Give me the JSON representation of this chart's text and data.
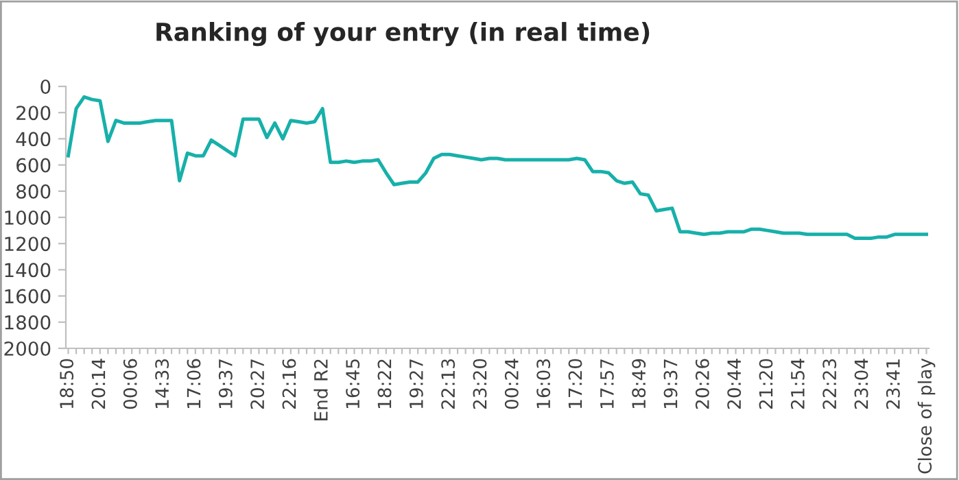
{
  "chart_data": {
    "type": "line",
    "title": "Ranking of your entry (in real time)",
    "categories": [
      "18:50",
      null,
      null,
      null,
      "20:14",
      null,
      null,
      null,
      "00:06",
      null,
      null,
      null,
      "14:33",
      null,
      null,
      null,
      "17:06",
      null,
      null,
      null,
      "19:37",
      null,
      null,
      null,
      "20:27",
      null,
      null,
      null,
      "22:16",
      null,
      null,
      null,
      "End R2",
      null,
      null,
      null,
      "16:45",
      null,
      null,
      null,
      "18:22",
      null,
      null,
      null,
      "19:27",
      null,
      null,
      null,
      "22:13",
      null,
      null,
      null,
      "23:20",
      null,
      null,
      null,
      "00:24",
      null,
      null,
      null,
      "16:03",
      null,
      null,
      null,
      "17:20",
      null,
      null,
      null,
      "17:57",
      null,
      null,
      null,
      "18:49",
      null,
      null,
      null,
      "19:37",
      null,
      null,
      null,
      "20:26",
      null,
      null,
      null,
      "20:44",
      null,
      null,
      null,
      "21:20",
      null,
      null,
      null,
      "21:54",
      null,
      null,
      null,
      "22:23",
      null,
      null,
      null,
      "23:04",
      null,
      null,
      null,
      "23:41",
      null,
      null,
      null,
      "Close of play"
    ],
    "series": [
      {
        "color": "#17b0aa",
        "values": [
          530,
          170,
          80,
          100,
          110,
          420,
          260,
          280,
          280,
          280,
          270,
          260,
          260,
          260,
          720,
          510,
          530,
          530,
          410,
          450,
          490,
          530,
          250,
          250,
          250,
          390,
          280,
          400,
          260,
          270,
          280,
          270,
          170,
          580,
          580,
          570,
          580,
          570,
          570,
          560,
          660,
          750,
          740,
          730,
          730,
          660,
          550,
          520,
          520,
          530,
          540,
          550,
          560,
          550,
          550,
          560,
          560,
          560,
          560,
          560,
          560,
          560,
          560,
          560,
          550,
          560,
          650,
          650,
          660,
          720,
          740,
          730,
          820,
          830,
          950,
          940,
          930,
          1110,
          1110,
          1120,
          1130,
          1120,
          1120,
          1110,
          1110,
          1110,
          1090,
          1090,
          1100,
          1110,
          1120,
          1120,
          1120,
          1130,
          1130,
          1130,
          1130,
          1130,
          1130,
          1160,
          1160,
          1160,
          1150,
          1150,
          1130,
          1130,
          1130,
          1130,
          1130
        ]
      }
    ],
    "ylim": [
      2000,
      0
    ],
    "yticks": [
      0,
      200,
      400,
      600,
      800,
      1000,
      1200,
      1400,
      1600,
      1800,
      2000
    ],
    "grid": false,
    "marker": "none",
    "line_style": "solid"
  }
}
